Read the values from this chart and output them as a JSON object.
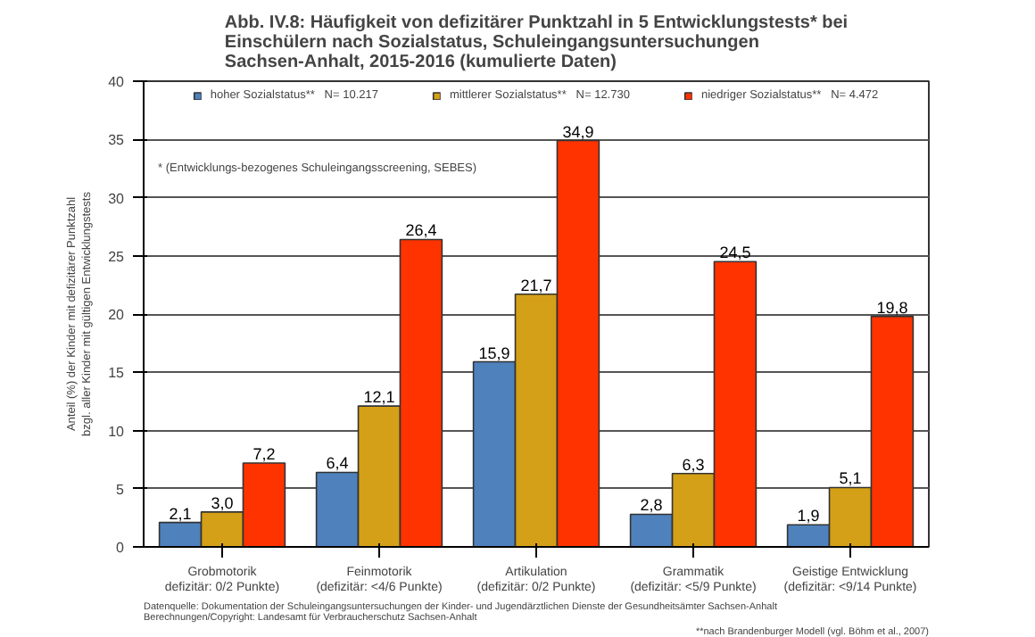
{
  "chart_data": {
    "type": "bar",
    "title": "Abb. IV.8: Häufigkeit von defizitärer Punktzahl in 5 Entwicklungstests* bei\nEinschülern nach Sozialstatus, Schuleingangsuntersuchungen\nSachsen-Anhalt, 2015-2016 (kumulierte Daten)",
    "ylabel": "Anteil (%) der Kinder mit defizitärer Punktzahl\nbzgl. aller Kinder mit gültigen Entwicklungstests",
    "categories": [
      "Grobmotorik\ndefizitär: 0/2 Punkte)",
      "Feinmotorik\n(defizitär: <4/6 Punkte)",
      "Artikulation\n(defizitär: 0/2 Punkte)",
      "Grammatik\n(defizitär: <5/9 Punkte)",
      "Geistige Entwicklung\n(defizitär: <9/14 Punkte)"
    ],
    "series": [
      {
        "name": "hoher Sozialstatus**   N= 10.217",
        "color": "#4f81bd",
        "values": [
          2.1,
          6.4,
          15.9,
          2.8,
          1.9
        ],
        "value_labels": [
          "2,1",
          "6,4",
          "15,9",
          "2,8",
          "1,9"
        ]
      },
      {
        "name": "mittlerer Sozialstatus**   N= 12.730",
        "color": "#d4a017",
        "values": [
          3.0,
          12.1,
          21.7,
          6.3,
          5.1
        ],
        "value_labels": [
          "3,0",
          "12,1",
          "21,7",
          "6,3",
          "5,1"
        ]
      },
      {
        "name": "niedriger Sozialstatus**   N= 4.472",
        "color": "#ff3300",
        "values": [
          7.2,
          26.4,
          34.9,
          24.5,
          19.8
        ],
        "value_labels": [
          "7,2",
          "26,4",
          "34,9",
          "24,5",
          "19,8"
        ]
      }
    ],
    "ylim": [
      0,
      40
    ],
    "yticks": [
      0,
      5,
      10,
      15,
      20,
      25,
      30,
      35,
      40
    ],
    "grid": "y",
    "legend": "top",
    "annotations": [
      "* (Entwicklungs-bezogenes Schuleingangsscreening, SEBES)",
      "Datenquelle: Dokumentation der Schuleingangsuntersuchungen der Kinder- und Jugendärztlichen Dienste der Gesundheitsämter Sachsen-Anhalt\nBerechnungen/Copyright: Landesamt für Verbraucherschutz Sachsen-Anhalt",
      "**nach Brandenburger Modell (vgl. Böhm et al., 2007)"
    ]
  }
}
